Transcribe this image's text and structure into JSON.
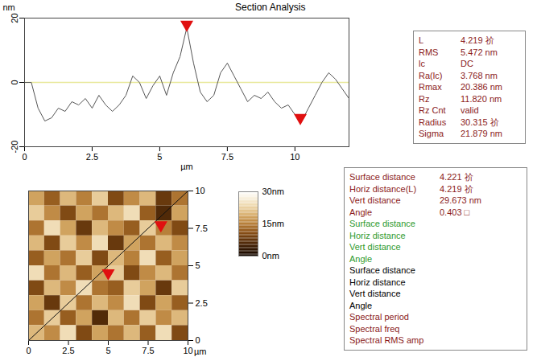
{
  "chart_data": [
    {
      "type": "line",
      "title": "Section Analysis",
      "x_label": "µm",
      "y_label": "nm",
      "x": [
        0,
        0.25,
        0.5,
        0.75,
        1,
        1.25,
        1.5,
        1.75,
        2,
        2.25,
        2.5,
        2.75,
        3,
        3.25,
        3.5,
        3.75,
        4,
        4.25,
        4.5,
        4.75,
        5,
        5.25,
        5.5,
        5.75,
        6,
        6.25,
        6.5,
        6.75,
        7,
        7.25,
        7.5,
        7.75,
        8,
        8.25,
        8.5,
        8.75,
        9,
        9.25,
        9.5,
        9.75,
        10,
        10.25,
        10.5,
        10.75,
        11,
        11.25,
        11.5,
        11.75,
        12
      ],
      "values": [
        0,
        0,
        -8,
        -12,
        -11,
        -8,
        -9,
        -6,
        -7,
        -5,
        -8,
        -4,
        -7,
        -9,
        -7,
        -4,
        2,
        0,
        -5,
        -1,
        2,
        -4,
        3,
        8,
        17,
        6,
        -3,
        -6,
        -4,
        3,
        6,
        2,
        -2,
        -6,
        -4,
        -5,
        -3,
        -6,
        -8,
        -7,
        -10,
        -12,
        -8,
        -4,
        0,
        3,
        1,
        -2,
        -5
      ],
      "color": "#555555",
      "xlim": [
        0,
        12
      ],
      "ylim": [
        -20,
        20
      ],
      "xticks": [
        0,
        2.5,
        5,
        7.5,
        10
      ],
      "yticks": [
        -20,
        0,
        20
      ],
      "reference_line": 0,
      "marker": "triangle",
      "markers": {
        "x": [
          6.0,
          10.2
        ],
        "y": [
          17,
          -12
        ]
      }
    },
    {
      "type": "heatmap",
      "x_label": "µm",
      "xlim": [
        0,
        10
      ],
      "ylim": [
        0,
        10
      ],
      "xticks": [
        0,
        2.5,
        5,
        7.5,
        10
      ],
      "yticks": [
        0,
        2.5,
        5,
        7.5,
        10
      ],
      "cells": [
        [
          18,
          12,
          20,
          15,
          22,
          10,
          16,
          20,
          8,
          14
        ],
        [
          22,
          16,
          10,
          18,
          14,
          20,
          24,
          12,
          6,
          18
        ],
        [
          14,
          24,
          18,
          8,
          20,
          16,
          12,
          22,
          15,
          10
        ],
        [
          20,
          10,
          22,
          16,
          24,
          8,
          18,
          14,
          20,
          16
        ],
        [
          12,
          18,
          14,
          22,
          10,
          20,
          15,
          24,
          12,
          18
        ],
        [
          24,
          14,
          20,
          12,
          18,
          22,
          10,
          16,
          20,
          14
        ],
        [
          10,
          20,
          16,
          24,
          14,
          12,
          22,
          18,
          8,
          22
        ],
        [
          18,
          8,
          22,
          14,
          20,
          16,
          24,
          10,
          18,
          12
        ],
        [
          14,
          22,
          12,
          18,
          6,
          20,
          14,
          22,
          16,
          20
        ],
        [
          20,
          16,
          24,
          10,
          18,
          14,
          20,
          12,
          24,
          10
        ]
      ],
      "colorbar": {
        "range": [
          0,
          30
        ],
        "ticks": [
          {
            "value": 30,
            "label": "30nm"
          },
          {
            "value": 15,
            "label": "15nm"
          },
          {
            "value": 0,
            "label": "0nm"
          }
        ]
      },
      "section_line": {
        "x": [
          0,
          10
        ],
        "y": [
          0,
          10
        ]
      },
      "marker": "triangle",
      "markers": {
        "x": [
          5,
          8.3
        ],
        "y": [
          4.3,
          7.5
        ]
      }
    }
  ],
  "tables": [
    {
      "color": "#8b1a1a",
      "rows": [
        [
          "L",
          "4.219 祄"
        ],
        [
          "RMS",
          "5.472 nm"
        ],
        [
          "lc",
          "DC"
        ],
        [
          "Ra(lc)",
          "3.768 nm"
        ],
        [
          "Rmax",
          "20.386 nm"
        ],
        [
          "Rz",
          "11.820 nm"
        ],
        [
          "Rz Cnt",
          "valid"
        ],
        [
          "Radius",
          "30.315 祄"
        ],
        [
          "Sigma",
          "21.879 nm"
        ]
      ]
    },
    {
      "groups": [
        {
          "color": "#8b1a1a",
          "rows": [
            [
              "Surface distance",
              "4.221 祄"
            ],
            [
              "Horiz distance(L)",
              "4.219 祄"
            ],
            [
              "Vert distance",
              "29.673 nm"
            ],
            [
              "Angle",
              "0.403 □"
            ]
          ]
        },
        {
          "color": "#2e9a2e",
          "rows": [
            [
              "Surface distance"
            ],
            [
              "Horiz distance"
            ],
            [
              "Vert distance"
            ],
            [
              "Angle"
            ]
          ]
        },
        {
          "color": "#000000",
          "rows": [
            [
              "Surface distance"
            ],
            [
              "Horiz distance"
            ],
            [
              "Vert distance"
            ],
            [
              "Angle"
            ]
          ]
        },
        {
          "color": "#8b1a1a",
          "rows": [
            [
              "Spectral period"
            ],
            [
              "Spectral freq"
            ],
            [
              "Spectral RMS amp"
            ]
          ]
        }
      ]
    }
  ]
}
